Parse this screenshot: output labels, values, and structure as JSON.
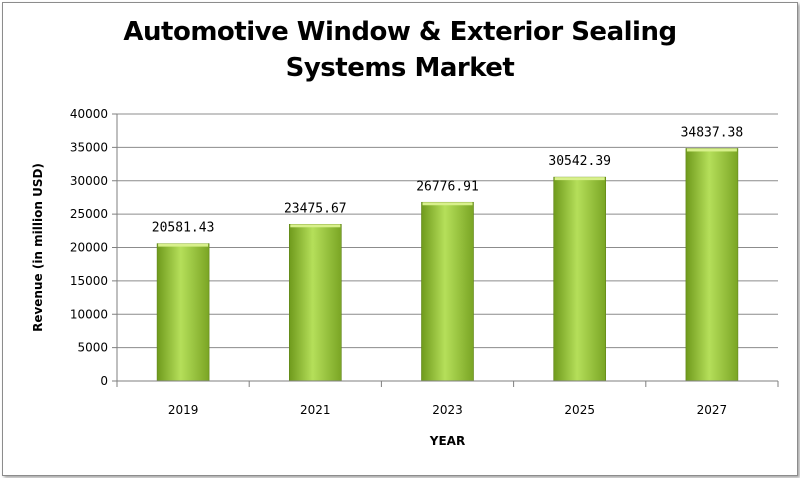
{
  "chart_data": {
    "type": "bar",
    "title_line1": "Automotive Window &  Exterior Sealing",
    "title_line2": "Systems Market",
    "xlabel": "YEAR",
    "ylabel": "Revenue (in million USD)",
    "categories": [
      "2019",
      "2021",
      "2023",
      "2025",
      "2027"
    ],
    "values": [
      20581.43,
      23475.67,
      26776.91,
      30542.39,
      34837.38
    ],
    "value_labels": [
      "20581.43",
      "23475.67",
      "26776.91",
      "30542.39",
      "34837.38"
    ],
    "ylim": [
      0,
      40000
    ],
    "yticks": [
      0,
      5000,
      10000,
      15000,
      20000,
      25000,
      30000,
      35000,
      40000
    ],
    "grid": true,
    "bar_color": "#8fbf32"
  }
}
